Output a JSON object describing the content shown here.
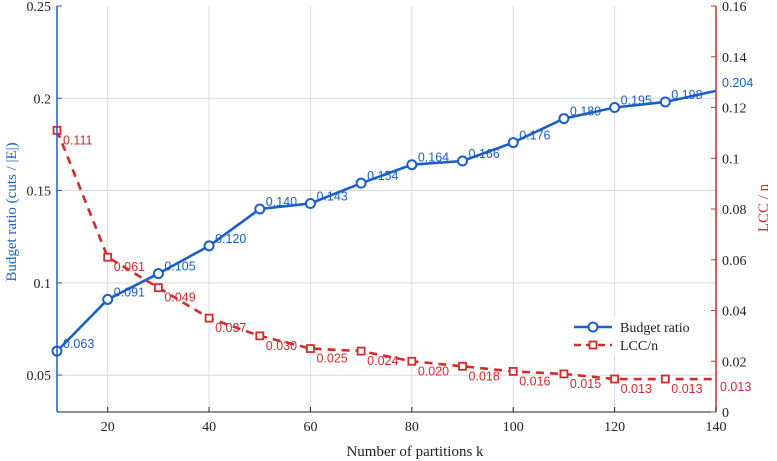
{
  "chart_data": {
    "type": "line",
    "xlabel": "Number of partitions k",
    "ylabel_left": "Budget ratio (cuts / |E|)",
    "ylabel_right": "LCC / n",
    "xlim": [
      10,
      140
    ],
    "xticks": [
      20,
      40,
      60,
      80,
      100,
      120,
      140
    ],
    "ylim_left": [
      0.03,
      0.25
    ],
    "yticks_left": [
      0.05,
      0.1,
      0.15,
      0.2,
      0.25
    ],
    "ylim_right": [
      0,
      0.16
    ],
    "yticks_right": [
      0,
      0.02,
      0.04,
      0.06,
      0.08,
      0.1,
      0.12,
      0.14,
      0.16
    ],
    "grid": true,
    "legend_position": "lower-right",
    "x": [
      10,
      20,
      30,
      40,
      50,
      60,
      70,
      80,
      90,
      100,
      110,
      120,
      130
    ],
    "series": [
      {
        "name": "Budget ratio",
        "axis": "left",
        "color": "#1a5fc8",
        "marker": "circle",
        "linestyle": "solid",
        "values": [
          0.063,
          0.091,
          0.105,
          0.12,
          0.14,
          0.143,
          0.154,
          0.164,
          0.166,
          0.176,
          0.189,
          0.195,
          0.198
        ],
        "labels": [
          "0.063",
          "0.091",
          "0.105",
          "0.120",
          "0.140",
          "0.143",
          "0.154",
          "0.164",
          "0.166",
          "0.176",
          "0.189",
          "0.195",
          "0.198"
        ],
        "end_point": {
          "x": 140,
          "value": 0.204,
          "label": "0.204"
        }
      },
      {
        "name": "LCC/n",
        "axis": "right",
        "color": "#d42a2a",
        "marker": "square",
        "linestyle": "dashed",
        "values": [
          0.111,
          0.061,
          0.049,
          0.037,
          0.03,
          0.025,
          0.024,
          0.02,
          0.018,
          0.016,
          0.015,
          0.013,
          0.013
        ],
        "labels": [
          "0.111",
          "0.061",
          "0.049",
          "0.037",
          "0.030",
          "0.025",
          "0.024",
          "0.020",
          "0.018",
          "0.016",
          "0.015",
          "0.013",
          "0.013"
        ],
        "end_point": {
          "x": 140,
          "value": 0.013,
          "label": "0.013"
        }
      }
    ]
  }
}
